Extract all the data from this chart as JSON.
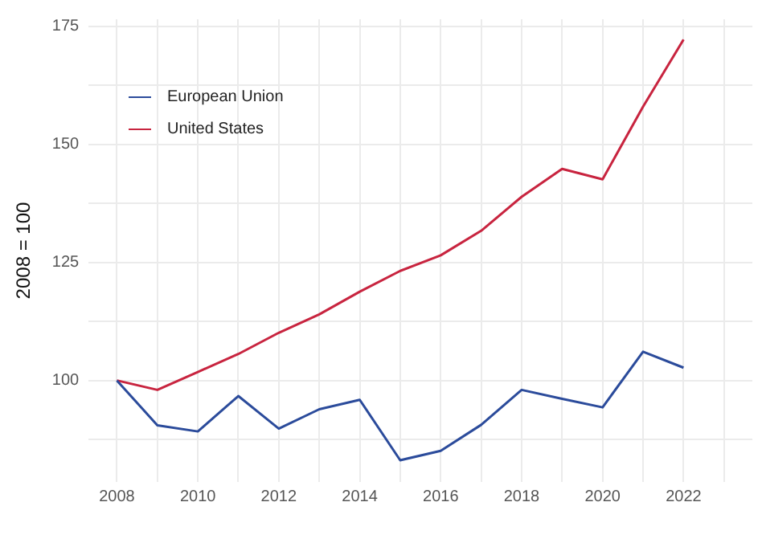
{
  "chart_data": {
    "type": "line",
    "ylabel": "2008 = 100",
    "x": [
      2008,
      2009,
      2010,
      2011,
      2012,
      2013,
      2014,
      2015,
      2016,
      2017,
      2018,
      2019,
      2020,
      2021,
      2022
    ],
    "series": [
      {
        "name": "European Union",
        "color": "#2b4b9b",
        "values": [
          100,
          90.5,
          89.2,
          96.7,
          89.8,
          93.9,
          95.9,
          83.1,
          85.1,
          90.6,
          98,
          96.1,
          94.3,
          106.1,
          102.7
        ]
      },
      {
        "name": "United States",
        "color": "#c8243f",
        "values": [
          100,
          98,
          101.8,
          105.6,
          110.1,
          114,
          118.8,
          123.2,
          126.5,
          131.7,
          138.9,
          144.8,
          142.6,
          158,
          172.2
        ]
      }
    ],
    "xlim": [
      2007.3,
      2023.7
    ],
    "xticks": [
      2008,
      {
        "value": 2009,
        "label": null
      },
      2010,
      {
        "value": 2011,
        "label": null
      },
      2012,
      {
        "value": 2013,
        "label": null
      },
      2014,
      {
        "value": 2015,
        "label": null
      },
      2016,
      {
        "value": 2017,
        "label": null
      },
      2018,
      {
        "value": 2019,
        "label": null
      },
      2020,
      {
        "value": 2021,
        "label": null
      },
      2022,
      {
        "value": 2023,
        "label": null
      }
    ],
    "ylim": [
      78.5,
      176.5
    ],
    "yticks": [
      {
        "value": 87.5,
        "label": null
      },
      100,
      {
        "value": 112.5,
        "label": null
      },
      125,
      {
        "value": 137.5,
        "label": null
      },
      150,
      {
        "value": 162.5,
        "label": null
      },
      175
    ],
    "grid": true,
    "legend": "top left",
    "marker": "none",
    "line_style": "solid"
  }
}
